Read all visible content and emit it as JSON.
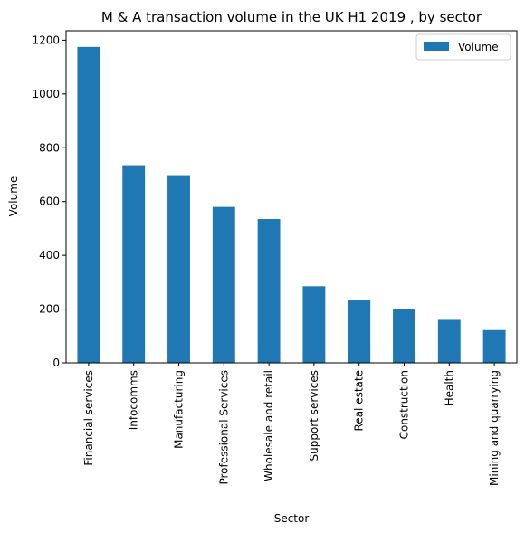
{
  "chart_data": {
    "type": "bar",
    "title": "M & A transaction volume in the UK H1 2019 , by sector",
    "xlabel": "Sector",
    "ylabel": "Volume",
    "categories": [
      "Financial services",
      "Infocomms",
      "Manufacturing",
      "Professional Services",
      "Wholesale and retail",
      "Support services",
      "Real estate",
      "Construction",
      "Health",
      "Mining and quarrying"
    ],
    "series": [
      {
        "name": "Volume",
        "values": [
          1175,
          735,
          698,
          580,
          535,
          285,
          232,
          200,
          160,
          122
        ]
      }
    ],
    "ylim": [
      0,
      1200
    ],
    "yticks": [
      0,
      200,
      400,
      600,
      800,
      1000,
      1200
    ],
    "grid": false,
    "legend_position": "top-right",
    "colors": {
      "bar": "#1f77b4",
      "axis": "#000000",
      "legend_border": "#cccccc"
    }
  }
}
